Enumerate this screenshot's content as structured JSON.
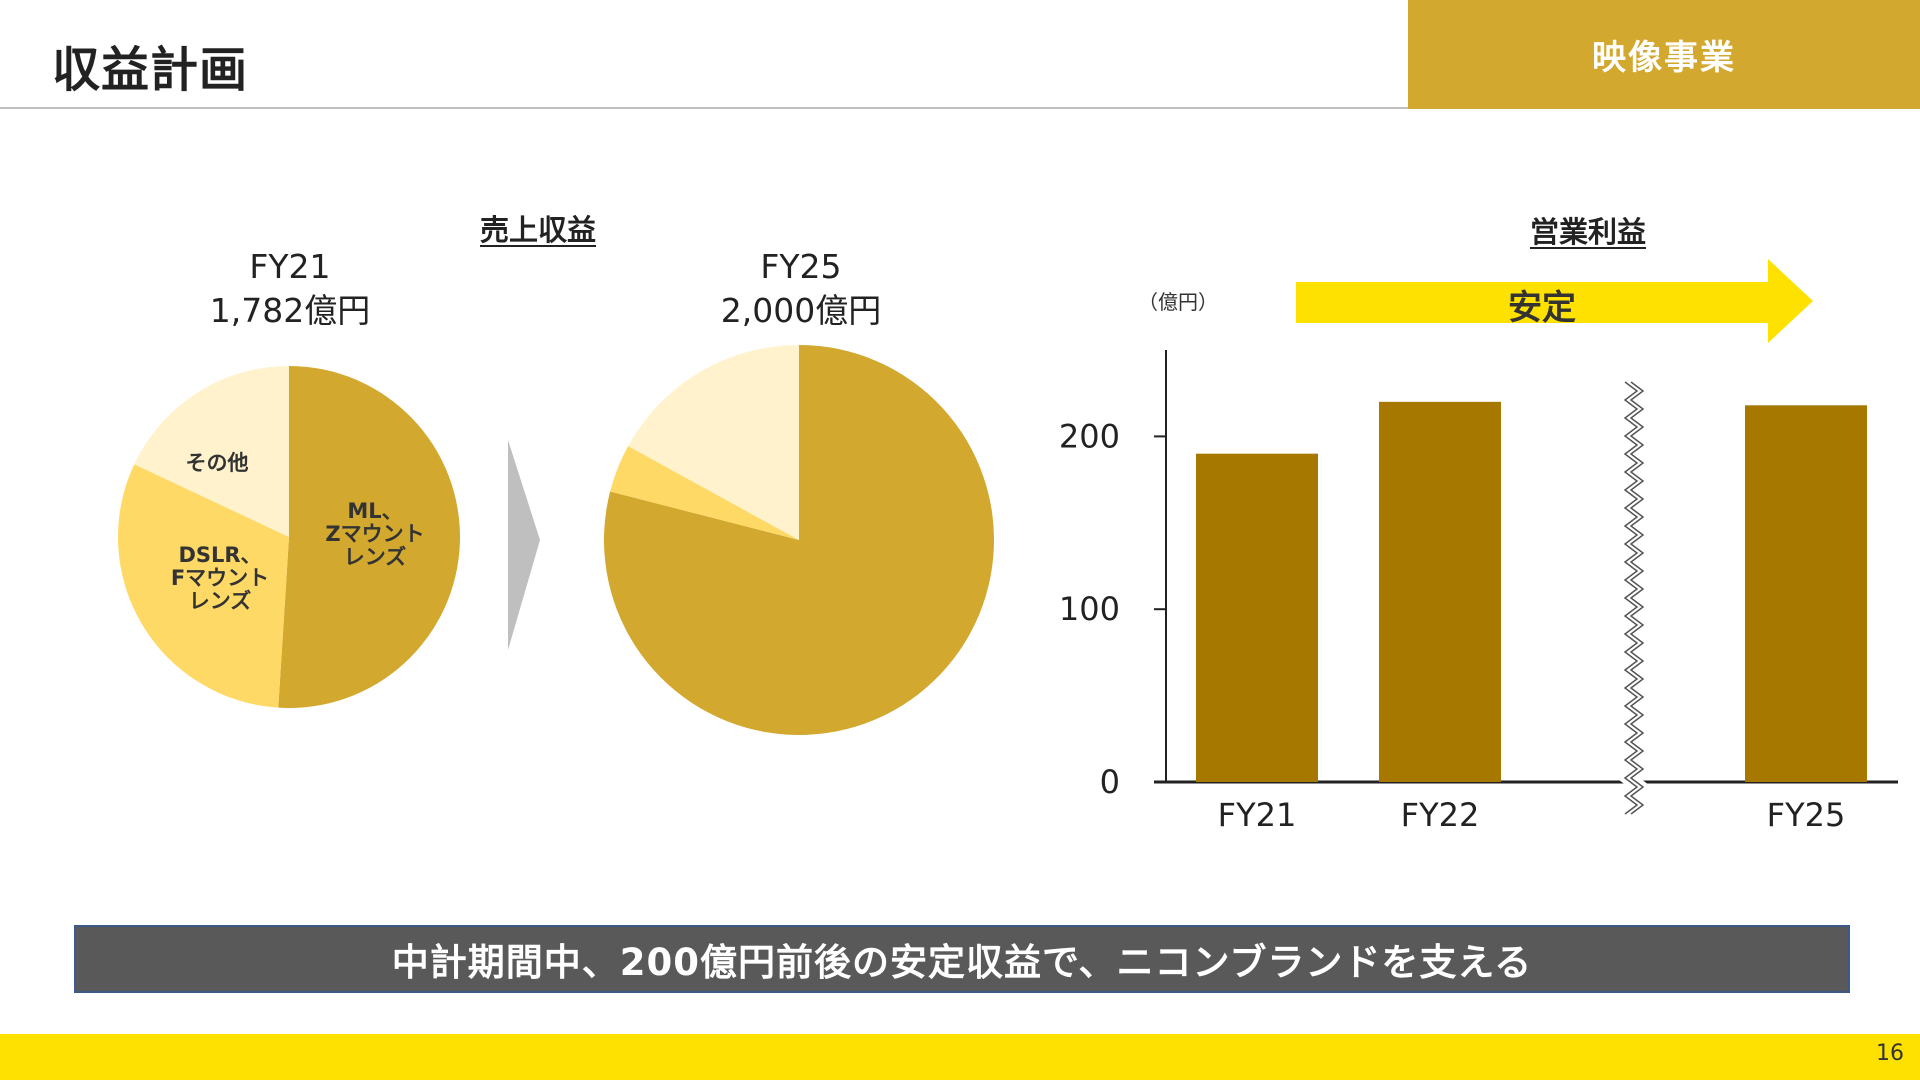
{
  "header": {
    "title": "収益計画",
    "segment": "映像事業"
  },
  "sales": {
    "title": "売上収益",
    "fy21_label": "FY21",
    "fy21_value": "1,782億円",
    "fy25_label": "FY25",
    "fy25_value": "2,000億円",
    "slice_names": {
      "ml": "ML、\nZマウント\nレンズ",
      "dslr": "DSLR、\nFマウント\nレンズ",
      "other": "その他"
    }
  },
  "profit": {
    "title": "営業利益",
    "unit": "（億円）",
    "arrow_label": "安定"
  },
  "banner": "中計期間中、200億円前後の安定収益で、ニコンブランドを支える",
  "page_number": "16",
  "colors": {
    "ml": "#d3a82f",
    "dslr": "#ffd966",
    "other": "#fff2cc",
    "bar": "#a67800",
    "arrow_yellow": "#ffe100",
    "gold": "#d3a82f"
  },
  "chart_data": [
    {
      "type": "pie",
      "title": "FY21",
      "labels": [
        "ML、Zマウントレンズ",
        "DSLR、Fマウントレンズ",
        "その他"
      ],
      "values": [
        51,
        31,
        18
      ]
    },
    {
      "type": "pie",
      "title": "FY25",
      "labels": [
        "ML、Zマウントレンズ",
        "DSLR、Fマウントレンズ",
        "その他"
      ],
      "values": [
        79,
        4,
        17
      ]
    },
    {
      "type": "bar",
      "title": "営業利益",
      "categories": [
        "FY21",
        "FY22",
        "FY25"
      ],
      "values": [
        190,
        220,
        218
      ],
      "ylabel": "（億円）",
      "yticks": [
        0,
        100,
        200
      ],
      "ylim": [
        0,
        250
      ],
      "axis_break_between": [
        "FY22",
        "FY25"
      ]
    }
  ]
}
